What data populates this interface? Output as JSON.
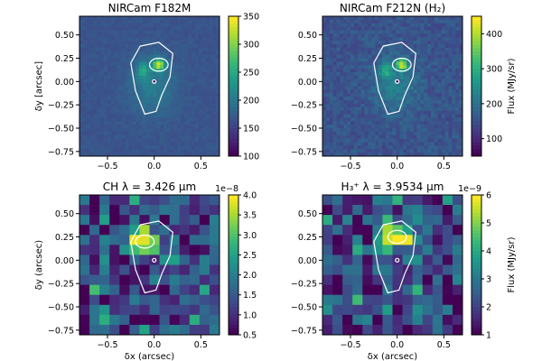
{
  "chart_data": [
    {
      "type": "heatmap",
      "title": "NIRCam F182M",
      "xlabel": "",
      "ylabel": "δy [arcsec]",
      "xlim": [
        -0.8,
        0.7
      ],
      "ylim": [
        -0.8,
        0.7
      ],
      "xticks": [
        "−0.5",
        "0.0",
        "0.5"
      ],
      "yticks": [
        "0.50",
        "0.25",
        "0.00",
        "−0.25",
        "−0.50",
        "−0.75"
      ],
      "resolution": "fine",
      "colorbar": {
        "label": "",
        "min": 100,
        "max": 350,
        "ticks": [
          "100",
          "150",
          "200",
          "250",
          "300",
          "350"
        ],
        "offset_text": ""
      },
      "colormap": "viridis",
      "peak": {
        "x": 0.05,
        "y": 0.18
      },
      "contours": "white",
      "seed": 3
    },
    {
      "type": "heatmap",
      "title": "NIRCam F212N (H₂)",
      "xlabel": "",
      "ylabel": "",
      "xlim": [
        -0.8,
        0.7
      ],
      "ylim": [
        -0.8,
        0.7
      ],
      "xticks": [
        "−0.5",
        "0.0",
        "0.5"
      ],
      "yticks": [
        "0.50",
        "0.25",
        "0.00",
        "−0.25",
        "−0.50",
        "−0.75"
      ],
      "resolution": "fine",
      "colorbar": {
        "label": "Flux (MJy/sr)",
        "min": 50,
        "max": 450,
        "ticks": [
          "100",
          "200",
          "300",
          "400"
        ],
        "offset_text": ""
      },
      "colormap": "viridis",
      "peak": {
        "x": 0.05,
        "y": 0.18
      },
      "contours": "white",
      "seed": 7
    },
    {
      "type": "heatmap",
      "title": "CH λ = 3.426 μm",
      "xlabel": "δx (arcsec)",
      "ylabel": "δy (arcsec)",
      "xlim": [
        -0.8,
        0.7
      ],
      "ylim": [
        -0.8,
        0.7
      ],
      "xticks": [
        "−0.5",
        "0.0",
        "0.5"
      ],
      "yticks": [
        "0.50",
        "0.25",
        "0.00",
        "−0.25",
        "−0.50",
        "−0.75"
      ],
      "resolution": "coarse",
      "colorbar": {
        "label": "",
        "min": 0.5,
        "max": 4.0,
        "ticks": [
          "0.5",
          "1.0",
          "1.5",
          "2.0",
          "2.5",
          "3.0",
          "3.5",
          "4.0"
        ],
        "offset_text": "1e−8"
      },
      "colormap": "viridis",
      "peak": {
        "x": -0.1,
        "y": 0.2
      },
      "contours": "white",
      "seed": 11
    },
    {
      "type": "heatmap",
      "title": "H₃⁺ λ = 3.9534 μm",
      "xlabel": "δx (arcsec)",
      "ylabel": "",
      "xlim": [
        -0.8,
        0.7
      ],
      "ylim": [
        -0.8,
        0.7
      ],
      "xticks": [
        "−0.5",
        "0.0",
        "0.5"
      ],
      "yticks": [
        "0.50",
        "0.25",
        "0.00",
        "−0.25",
        "−0.50",
        "−0.75"
      ],
      "resolution": "coarse",
      "colorbar": {
        "label": "Flux (MJy/sr)",
        "min": 1,
        "max": 6,
        "ticks": [
          "1",
          "2",
          "3",
          "4",
          "5",
          "6"
        ],
        "offset_text": "1e−9"
      },
      "colormap": "viridis",
      "peak": {
        "x": 0.0,
        "y": 0.25
      },
      "contours": "white",
      "seed": 19
    }
  ]
}
